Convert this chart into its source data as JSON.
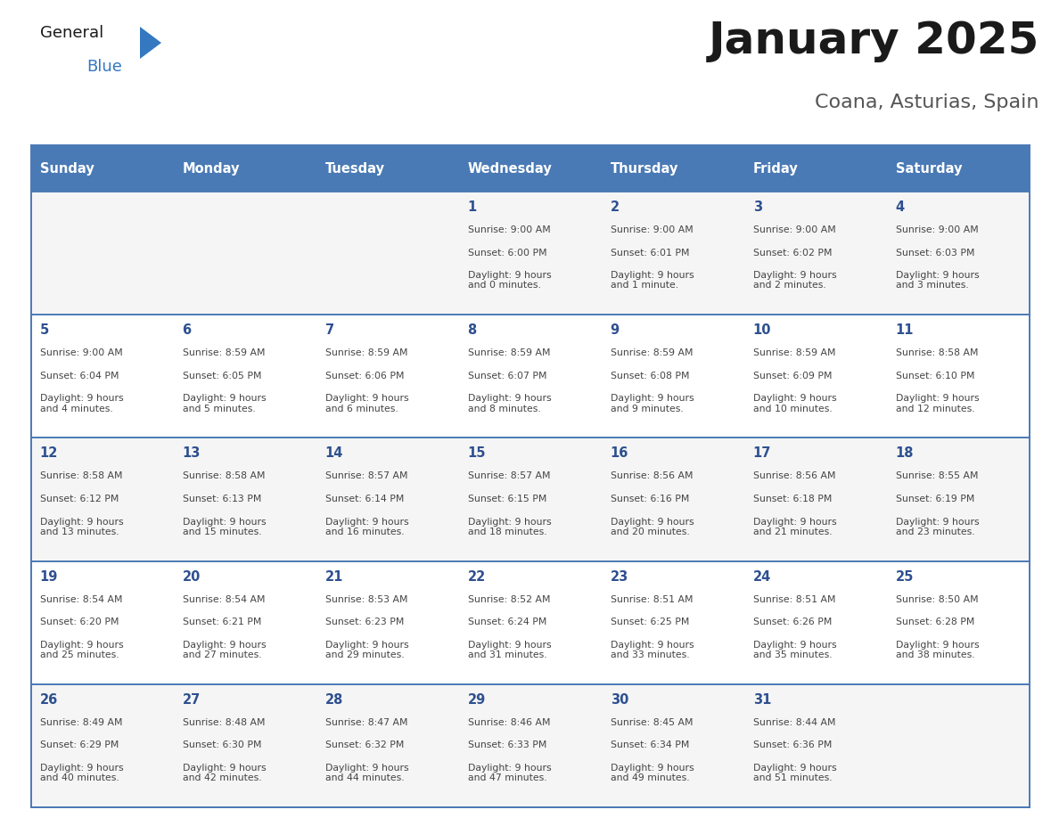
{
  "title": "January 2025",
  "subtitle": "Coana, Asturias, Spain",
  "header_bg": "#4a7ab5",
  "header_text_color": "#FFFFFF",
  "cell_bg_odd": "#f5f5f5",
  "cell_bg_even": "#FFFFFF",
  "day_text_color": "#2E5090",
  "cell_text_color": "#444444",
  "border_color": "#4a7ab5",
  "line_color": "#4a7ab5",
  "days_of_week": [
    "Sunday",
    "Monday",
    "Tuesday",
    "Wednesday",
    "Thursday",
    "Friday",
    "Saturday"
  ],
  "weeks": [
    [
      {
        "day": "",
        "sunrise": "",
        "sunset": "",
        "daylight": ""
      },
      {
        "day": "",
        "sunrise": "",
        "sunset": "",
        "daylight": ""
      },
      {
        "day": "",
        "sunrise": "",
        "sunset": "",
        "daylight": ""
      },
      {
        "day": "1",
        "sunrise": "9:00 AM",
        "sunset": "6:00 PM",
        "daylight": "9 hours\nand 0 minutes."
      },
      {
        "day": "2",
        "sunrise": "9:00 AM",
        "sunset": "6:01 PM",
        "daylight": "9 hours\nand 1 minute."
      },
      {
        "day": "3",
        "sunrise": "9:00 AM",
        "sunset": "6:02 PM",
        "daylight": "9 hours\nand 2 minutes."
      },
      {
        "day": "4",
        "sunrise": "9:00 AM",
        "sunset": "6:03 PM",
        "daylight": "9 hours\nand 3 minutes."
      }
    ],
    [
      {
        "day": "5",
        "sunrise": "9:00 AM",
        "sunset": "6:04 PM",
        "daylight": "9 hours\nand 4 minutes."
      },
      {
        "day": "6",
        "sunrise": "8:59 AM",
        "sunset": "6:05 PM",
        "daylight": "9 hours\nand 5 minutes."
      },
      {
        "day": "7",
        "sunrise": "8:59 AM",
        "sunset": "6:06 PM",
        "daylight": "9 hours\nand 6 minutes."
      },
      {
        "day": "8",
        "sunrise": "8:59 AM",
        "sunset": "6:07 PM",
        "daylight": "9 hours\nand 8 minutes."
      },
      {
        "day": "9",
        "sunrise": "8:59 AM",
        "sunset": "6:08 PM",
        "daylight": "9 hours\nand 9 minutes."
      },
      {
        "day": "10",
        "sunrise": "8:59 AM",
        "sunset": "6:09 PM",
        "daylight": "9 hours\nand 10 minutes."
      },
      {
        "day": "11",
        "sunrise": "8:58 AM",
        "sunset": "6:10 PM",
        "daylight": "9 hours\nand 12 minutes."
      }
    ],
    [
      {
        "day": "12",
        "sunrise": "8:58 AM",
        "sunset": "6:12 PM",
        "daylight": "9 hours\nand 13 minutes."
      },
      {
        "day": "13",
        "sunrise": "8:58 AM",
        "sunset": "6:13 PM",
        "daylight": "9 hours\nand 15 minutes."
      },
      {
        "day": "14",
        "sunrise": "8:57 AM",
        "sunset": "6:14 PM",
        "daylight": "9 hours\nand 16 minutes."
      },
      {
        "day": "15",
        "sunrise": "8:57 AM",
        "sunset": "6:15 PM",
        "daylight": "9 hours\nand 18 minutes."
      },
      {
        "day": "16",
        "sunrise": "8:56 AM",
        "sunset": "6:16 PM",
        "daylight": "9 hours\nand 20 minutes."
      },
      {
        "day": "17",
        "sunrise": "8:56 AM",
        "sunset": "6:18 PM",
        "daylight": "9 hours\nand 21 minutes."
      },
      {
        "day": "18",
        "sunrise": "8:55 AM",
        "sunset": "6:19 PM",
        "daylight": "9 hours\nand 23 minutes."
      }
    ],
    [
      {
        "day": "19",
        "sunrise": "8:54 AM",
        "sunset": "6:20 PM",
        "daylight": "9 hours\nand 25 minutes."
      },
      {
        "day": "20",
        "sunrise": "8:54 AM",
        "sunset": "6:21 PM",
        "daylight": "9 hours\nand 27 minutes."
      },
      {
        "day": "21",
        "sunrise": "8:53 AM",
        "sunset": "6:23 PM",
        "daylight": "9 hours\nand 29 minutes."
      },
      {
        "day": "22",
        "sunrise": "8:52 AM",
        "sunset": "6:24 PM",
        "daylight": "9 hours\nand 31 minutes."
      },
      {
        "day": "23",
        "sunrise": "8:51 AM",
        "sunset": "6:25 PM",
        "daylight": "9 hours\nand 33 minutes."
      },
      {
        "day": "24",
        "sunrise": "8:51 AM",
        "sunset": "6:26 PM",
        "daylight": "9 hours\nand 35 minutes."
      },
      {
        "day": "25",
        "sunrise": "8:50 AM",
        "sunset": "6:28 PM",
        "daylight": "9 hours\nand 38 minutes."
      }
    ],
    [
      {
        "day": "26",
        "sunrise": "8:49 AM",
        "sunset": "6:29 PM",
        "daylight": "9 hours\nand 40 minutes."
      },
      {
        "day": "27",
        "sunrise": "8:48 AM",
        "sunset": "6:30 PM",
        "daylight": "9 hours\nand 42 minutes."
      },
      {
        "day": "28",
        "sunrise": "8:47 AM",
        "sunset": "6:32 PM",
        "daylight": "9 hours\nand 44 minutes."
      },
      {
        "day": "29",
        "sunrise": "8:46 AM",
        "sunset": "6:33 PM",
        "daylight": "9 hours\nand 47 minutes."
      },
      {
        "day": "30",
        "sunrise": "8:45 AM",
        "sunset": "6:34 PM",
        "daylight": "9 hours\nand 49 minutes."
      },
      {
        "day": "31",
        "sunrise": "8:44 AM",
        "sunset": "6:36 PM",
        "daylight": "9 hours\nand 51 minutes."
      },
      {
        "day": "",
        "sunrise": "",
        "sunset": "",
        "daylight": ""
      }
    ]
  ],
  "logo_general_color": "#1a1a1a",
  "logo_blue_color": "#3478C0",
  "logo_triangle_color": "#3478C0"
}
